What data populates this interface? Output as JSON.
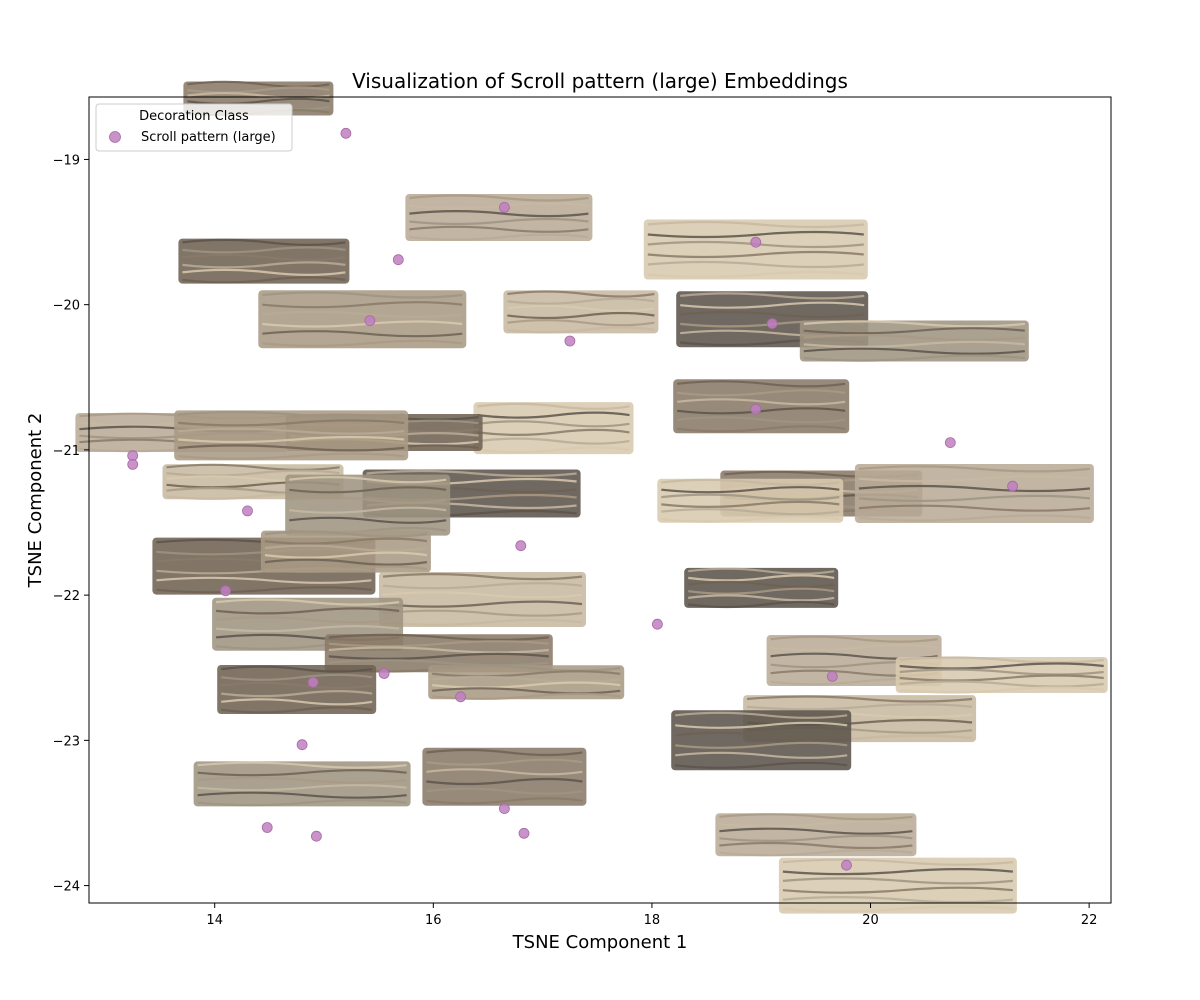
{
  "chart_data": {
    "type": "scatter",
    "title": "Visualization of Scroll pattern (large) Embeddings",
    "xlabel": "TSNE Component 1",
    "ylabel": "TSNE Component 2",
    "xlim": [
      12.85,
      22.2
    ],
    "ylim": [
      -24.12,
      -18.57
    ],
    "xticks": [
      14,
      16,
      18,
      20,
      22
    ],
    "yticks": [
      -19,
      -20,
      -21,
      -22,
      -23,
      -24
    ],
    "xtick_labels": [
      "14",
      "16",
      "18",
      "20",
      "22"
    ],
    "ytick_labels": [
      "−19",
      "−20",
      "−21",
      "−22",
      "−23",
      "−24"
    ],
    "grid": false,
    "legend": {
      "title": "Decoration Class",
      "placement": "top-left",
      "entries": [
        {
          "label": "Scroll pattern (large)",
          "color": "#BF7FBF"
        }
      ]
    },
    "marker_color": "#BF7FBF",
    "thumbnail_palette": [
      "#8a7a68",
      "#b9ab97",
      "#d8c9ae",
      "#6f6253",
      "#a99a84",
      "#c7b9a1",
      "#5c544b",
      "#9e9482"
    ],
    "series": [
      {
        "name": "Scroll pattern (large)",
        "points": [
          {
            "x": 15.2,
            "y": -18.82
          },
          {
            "x": 16.65,
            "y": -19.33
          },
          {
            "x": 18.95,
            "y": -19.57
          },
          {
            "x": 15.68,
            "y": -19.69
          },
          {
            "x": 15.42,
            "y": -20.11
          },
          {
            "x": 19.1,
            "y": -20.13
          },
          {
            "x": 17.25,
            "y": -20.25
          },
          {
            "x": 18.95,
            "y": -20.72
          },
          {
            "x": 20.73,
            "y": -20.95
          },
          {
            "x": 13.25,
            "y": -21.04
          },
          {
            "x": 13.25,
            "y": -21.1
          },
          {
            "x": 21.3,
            "y": -21.25
          },
          {
            "x": 14.3,
            "y": -21.42
          },
          {
            "x": 16.8,
            "y": -21.66
          },
          {
            "x": 14.1,
            "y": -21.97
          },
          {
            "x": 18.05,
            "y": -22.2
          },
          {
            "x": 15.55,
            "y": -22.54
          },
          {
            "x": 19.65,
            "y": -22.56
          },
          {
            "x": 14.9,
            "y": -22.6
          },
          {
            "x": 16.25,
            "y": -22.7
          },
          {
            "x": 14.8,
            "y": -23.03
          },
          {
            "x": 16.65,
            "y": -23.47
          },
          {
            "x": 14.48,
            "y": -23.6
          },
          {
            "x": 14.93,
            "y": -23.66
          },
          {
            "x": 16.83,
            "y": -23.64
          },
          {
            "x": 19.78,
            "y": -23.86
          }
        ]
      }
    ],
    "thumbnails": [
      {
        "x": 14.4,
        "y": -18.58
      },
      {
        "x": 16.6,
        "y": -19.4
      },
      {
        "x": 18.95,
        "y": -19.62
      },
      {
        "x": 14.45,
        "y": -19.7
      },
      {
        "x": 15.35,
        "y": -20.1
      },
      {
        "x": 17.35,
        "y": -20.05
      },
      {
        "x": 19.1,
        "y": -20.1
      },
      {
        "x": 20.4,
        "y": -20.25
      },
      {
        "x": 19.0,
        "y": -20.7
      },
      {
        "x": 13.7,
        "y": -20.88
      },
      {
        "x": 17.1,
        "y": -20.85
      },
      {
        "x": 15.55,
        "y": -20.88
      },
      {
        "x": 14.7,
        "y": -20.9
      },
      {
        "x": 14.35,
        "y": -21.22
      },
      {
        "x": 16.35,
        "y": -21.3
      },
      {
        "x": 15.4,
        "y": -21.38
      },
      {
        "x": 19.55,
        "y": -21.3
      },
      {
        "x": 20.95,
        "y": -21.3
      },
      {
        "x": 18.9,
        "y": -21.35
      },
      {
        "x": 14.45,
        "y": -21.8
      },
      {
        "x": 15.2,
        "y": -21.7
      },
      {
        "x": 16.45,
        "y": -22.03
      },
      {
        "x": 19.0,
        "y": -21.95
      },
      {
        "x": 14.85,
        "y": -22.2
      },
      {
        "x": 16.05,
        "y": -22.4
      },
      {
        "x": 19.85,
        "y": -22.45
      },
      {
        "x": 21.2,
        "y": -22.55
      },
      {
        "x": 14.75,
        "y": -22.65
      },
      {
        "x": 16.85,
        "y": -22.6
      },
      {
        "x": 19.9,
        "y": -22.85
      },
      {
        "x": 19.0,
        "y": -23.0
      },
      {
        "x": 14.8,
        "y": -23.3
      },
      {
        "x": 16.65,
        "y": -23.25
      },
      {
        "x": 19.5,
        "y": -23.65
      },
      {
        "x": 20.25,
        "y": -24.0
      }
    ]
  }
}
